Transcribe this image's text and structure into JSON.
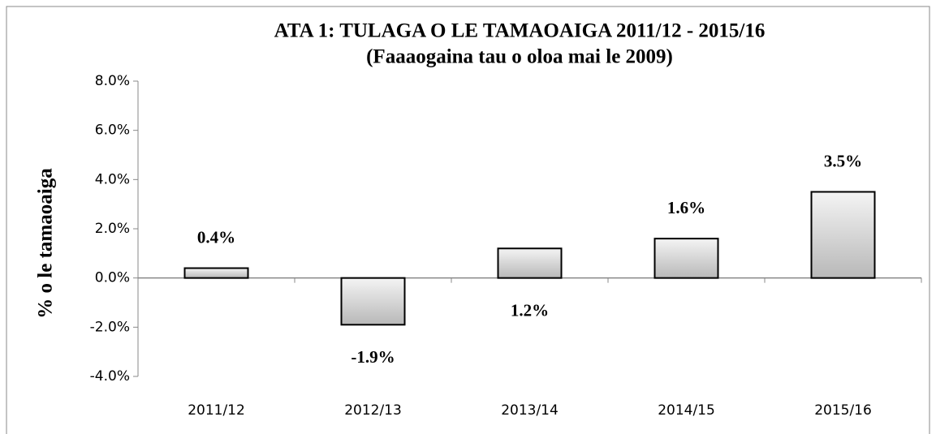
{
  "chart_data": {
    "type": "bar",
    "title": "ATA 1: TULAGA O LE TAMAOAIGA  2011/12 - 2015/16",
    "subtitle": "(Faaaogaina tau o oloa mai le 2009)",
    "y_label": "% o le tamaoaiga",
    "categories": [
      "2011/12",
      "2012/13",
      "2013/14",
      "2014/15",
      "2015/16"
    ],
    "values": [
      0.4,
      -1.9,
      1.2,
      1.6,
      3.5
    ],
    "value_labels": [
      "0.4%",
      "-1.9%",
      "1.2%",
      "1.6%",
      "3.5%"
    ],
    "ylim": [
      -4,
      8
    ],
    "yticks": [
      {
        "value": -4,
        "label": "-4.0%"
      },
      {
        "value": -2,
        "label": "-2.0%"
      },
      {
        "value": 0,
        "label": "0.0%"
      },
      {
        "value": 2,
        "label": "2.0%"
      },
      {
        "value": 4,
        "label": "4.0%"
      },
      {
        "value": 6,
        "label": "6.0%"
      },
      {
        "value": 8,
        "label": "8.0%"
      }
    ],
    "grid": false
  }
}
